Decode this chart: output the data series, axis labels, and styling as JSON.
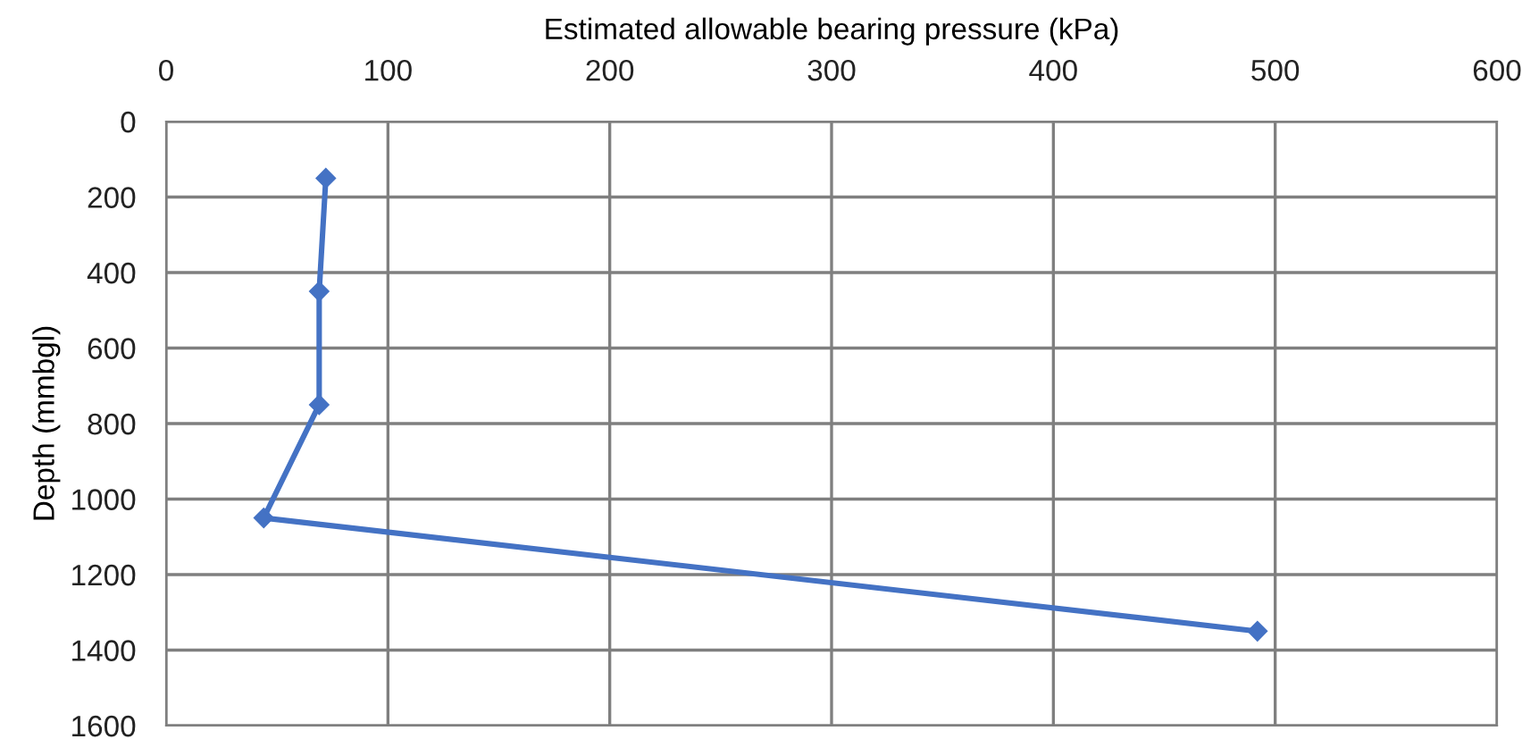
{
  "chart_data": {
    "type": "line",
    "xlabel": "Estimated allowable bearing pressure (kPa)",
    "ylabel": "Depth (mmbgl)",
    "x": [
      72,
      69,
      69,
      44,
      492
    ],
    "series": [
      {
        "color": "#4472c4",
        "values": [
          150,
          450,
          750,
          1050,
          1350
        ]
      }
    ],
    "xlim": [
      0,
      600
    ],
    "xticks": [
      0,
      100,
      200,
      300,
      400,
      500,
      600
    ],
    "ylim": [
      1600,
      0
    ],
    "yticks": [
      0,
      200,
      400,
      600,
      800,
      1000,
      1200,
      1400,
      1600
    ],
    "grid": true,
    "marker": "diamond",
    "line_style": "solid",
    "legend": false
  }
}
